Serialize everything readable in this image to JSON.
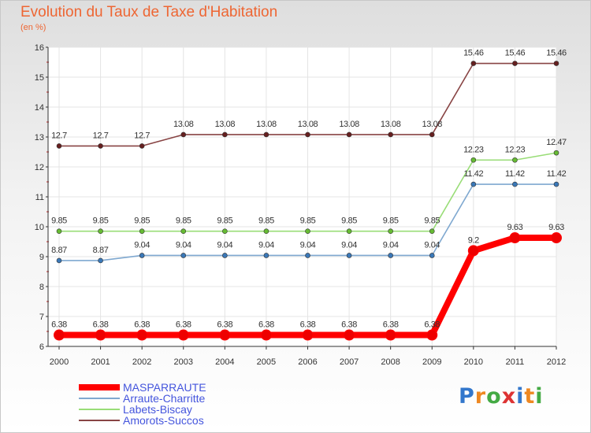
{
  "header": {
    "title": "Evolution du Taux de Taxe d'Habitation",
    "subtitle": "(en %)"
  },
  "logo": {
    "text": "Proxiti",
    "letter_colors": [
      "#3377cc",
      "#ee8822",
      "#44aa44",
      "#dd3333",
      "#3377cc",
      "#ee8822",
      "#44aa44"
    ]
  },
  "colors": {
    "title": "#ee6633",
    "grid": "#e4e4e4",
    "axis": "#333333",
    "legend_text": "#4455dd"
  },
  "chart_data": {
    "type": "line",
    "title": "Evolution du Taux de Taxe d'Habitation",
    "subtitle": "(en %)",
    "xlabel": "",
    "ylabel": "",
    "ylim": [
      6,
      16
    ],
    "yticks": [
      6,
      7,
      8,
      9,
      10,
      11,
      12,
      13,
      14,
      15,
      16
    ],
    "x": [
      "2000",
      "2001",
      "2002",
      "2003",
      "2004",
      "2005",
      "2006",
      "2007",
      "2008",
      "2009",
      "2010",
      "2011",
      "2012"
    ],
    "grid": true,
    "legend_position": "bottom-left",
    "series": [
      {
        "name": "MASPARRAUTE",
        "color": "#ff0000",
        "marker_color": "#ee0000",
        "values": [
          6.38,
          6.38,
          6.38,
          6.38,
          6.38,
          6.38,
          6.38,
          6.38,
          6.38,
          6.38,
          9.2,
          9.63,
          9.63
        ],
        "labels": [
          "6.38",
          "6.38",
          "6.38",
          "6.38",
          "6.38",
          "6.38",
          "6.38",
          "6.38",
          "6.38",
          "6.38",
          "9.2",
          "9.63",
          "9.63"
        ]
      },
      {
        "name": "Arraute-Charritte",
        "color": "#7fa8d0",
        "marker_color": "#3a78b8",
        "values": [
          8.87,
          8.87,
          9.04,
          9.04,
          9.04,
          9.04,
          9.04,
          9.04,
          9.04,
          9.04,
          11.42,
          11.42,
          11.42
        ],
        "labels": [
          "8.87",
          "8.87",
          "9.04",
          "9.04",
          "9.04",
          "9.04",
          "9.04",
          "9.04",
          "9.04",
          "9.04",
          "11.42",
          "11.42",
          "11.42"
        ]
      },
      {
        "name": "Labets-Biscay",
        "color": "#99dd77",
        "marker_color": "#66bb33",
        "values": [
          9.85,
          9.85,
          9.85,
          9.85,
          9.85,
          9.85,
          9.85,
          9.85,
          9.85,
          9.85,
          12.23,
          12.23,
          12.47
        ],
        "labels": [
          "9.85",
          "9.85",
          "9.85",
          "9.85",
          "9.85",
          "9.85",
          "9.85",
          "9.85",
          "9.85",
          "9.85",
          "12.23",
          "12.23",
          "12.47"
        ]
      },
      {
        "name": "Amorots-Succos",
        "color": "#884444",
        "marker_color": "#661f1f",
        "values": [
          12.7,
          12.7,
          12.7,
          13.08,
          13.08,
          13.08,
          13.08,
          13.08,
          13.08,
          13.08,
          15.46,
          15.46,
          15.46
        ],
        "labels": [
          "12.7",
          "12.7",
          "12.7",
          "13.08",
          "13.08",
          "13.08",
          "13.08",
          "13.08",
          "13.08",
          "13.08",
          "15.46",
          "15.46",
          "15.46"
        ]
      }
    ]
  }
}
